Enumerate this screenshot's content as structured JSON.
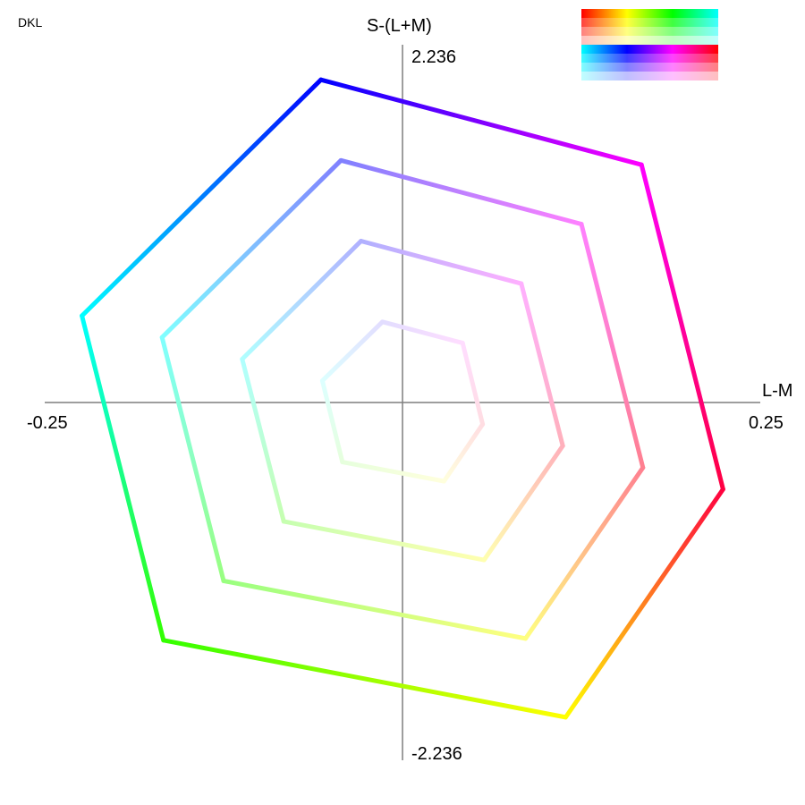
{
  "chart_data": {
    "type": "line",
    "title": "DKL",
    "xlabel": "L-M",
    "ylabel": "S-(L+M)",
    "xlim": [
      -0.25,
      0.25
    ],
    "ylim": [
      -2.236,
      2.236
    ],
    "x_ticks": {
      "min": "-0.25",
      "max": "0.25"
    },
    "y_ticks": {
      "min": "-2.236",
      "max": "2.236"
    },
    "grid": false,
    "series": [
      {
        "saturation": 1.0,
        "vertices": [
          {
            "x": 0.224,
            "y": -0.542,
            "color": "#ff0040"
          },
          {
            "x": 0.114,
            "y": -1.967,
            "color": "#ffff00"
          },
          {
            "x": -0.167,
            "y": -1.486,
            "color": "#33ff00"
          },
          {
            "x": -0.224,
            "y": 0.542,
            "color": "#00ffff"
          },
          {
            "x": -0.057,
            "y": 2.017,
            "color": "#0000ff"
          },
          {
            "x": 0.167,
            "y": 1.486,
            "color": "#ff00ff"
          }
        ]
      },
      {
        "saturation": 0.75,
        "vertices": [
          {
            "x": 0.168,
            "y": -0.407,
            "color": "#ff8090"
          },
          {
            "x": 0.086,
            "y": -1.475,
            "color": "#ffff80"
          },
          {
            "x": -0.125,
            "y": -1.115,
            "color": "#99ff80"
          },
          {
            "x": -0.168,
            "y": 0.407,
            "color": "#80ffff"
          },
          {
            "x": -0.043,
            "y": 1.513,
            "color": "#8080ff"
          },
          {
            "x": 0.125,
            "y": 1.115,
            "color": "#ff80ff"
          }
        ]
      },
      {
        "saturation": 0.5,
        "vertices": [
          {
            "x": 0.112,
            "y": -0.271,
            "color": "#ffb0bb"
          },
          {
            "x": 0.057,
            "y": -0.984,
            "color": "#ffffb0"
          },
          {
            "x": -0.083,
            "y": -0.743,
            "color": "#c6ffb0"
          },
          {
            "x": -0.112,
            "y": 0.271,
            "color": "#b0ffff"
          },
          {
            "x": -0.029,
            "y": 1.009,
            "color": "#b0b0ff"
          },
          {
            "x": 0.083,
            "y": 0.743,
            "color": "#ffb0ff"
          }
        ]
      },
      {
        "saturation": 0.25,
        "vertices": [
          {
            "x": 0.056,
            "y": -0.136,
            "color": "#ffdde2"
          },
          {
            "x": 0.029,
            "y": -0.492,
            "color": "#ffffdd"
          },
          {
            "x": -0.042,
            "y": -0.372,
            "color": "#e6ffdd"
          },
          {
            "x": -0.056,
            "y": 0.136,
            "color": "#ddffff"
          },
          {
            "x": -0.014,
            "y": 0.504,
            "color": "#e2ddff"
          },
          {
            "x": 0.042,
            "y": 0.372,
            "color": "#ffddff"
          }
        ]
      }
    ]
  },
  "swatch_panel": {
    "hue_colors": [
      "#ff0000",
      "#ffff00",
      "#00ff00",
      "#00ffff",
      "#0000ff",
      "#ff00ff",
      "#ff0000"
    ],
    "levels": [
      1.0,
      0.75,
      0.5,
      0.25
    ]
  }
}
